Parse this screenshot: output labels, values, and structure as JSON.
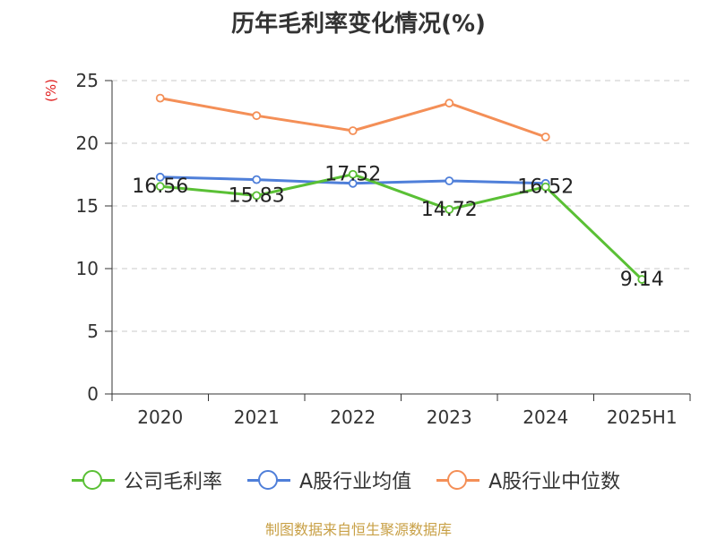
{
  "chart_data": {
    "type": "line",
    "title": "历年毛利率变化情况(%)",
    "y_unit_label": "(%)",
    "categories": [
      "2020",
      "2021",
      "2022",
      "2023",
      "2024",
      "2025H1"
    ],
    "ylim": [
      0,
      25
    ],
    "yticks": [
      0,
      5,
      10,
      15,
      20,
      25
    ],
    "grid": true,
    "legend_position": "bottom",
    "series": [
      {
        "name": "公司毛利率",
        "color": "#5ac035",
        "values": [
          16.56,
          15.83,
          17.52,
          14.72,
          16.52,
          9.14
        ],
        "labels": [
          "16.56",
          "15.83",
          "17.52",
          "14.72",
          "16.52",
          "9.14"
        ]
      },
      {
        "name": "A股行业均值",
        "color": "#4f7fd9",
        "values": [
          17.3,
          17.1,
          16.8,
          17.0,
          16.8,
          null
        ]
      },
      {
        "name": "A股行业中位数",
        "color": "#f48f57",
        "values": [
          23.6,
          22.2,
          21.0,
          23.2,
          20.5,
          null
        ]
      }
    ]
  },
  "source_text": "制图数据来自恒生聚源数据库"
}
